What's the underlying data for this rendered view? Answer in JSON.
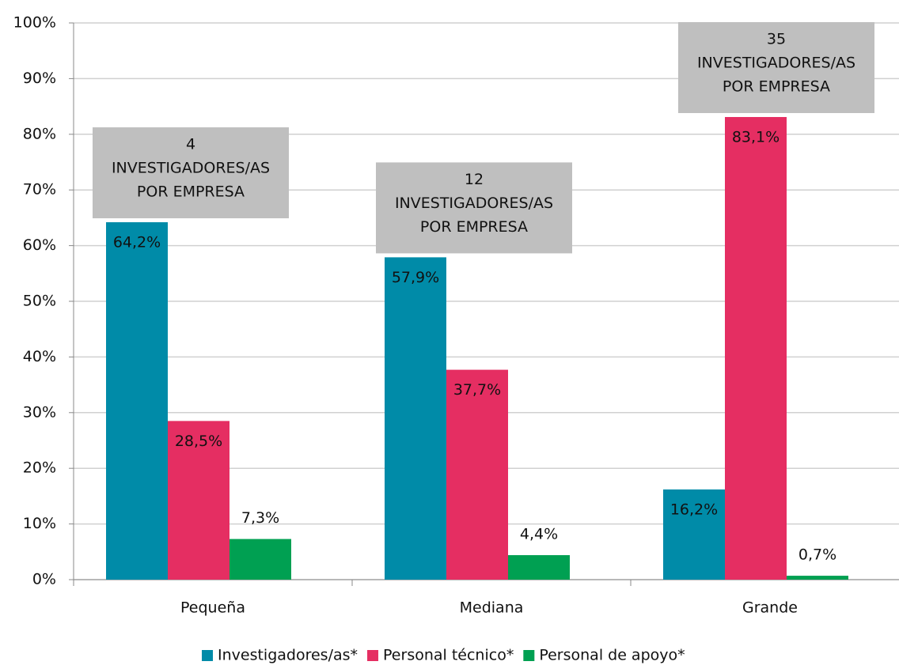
{
  "chart_data": {
    "type": "bar",
    "categories": [
      "Pequeña",
      "Mediana",
      "Grande"
    ],
    "series": [
      {
        "name": "Investigadores/as*",
        "color": "#008ba8",
        "values": [
          64.2,
          57.9,
          16.2
        ],
        "value_labels": [
          "64,2%",
          "57,9%",
          "16,2%"
        ]
      },
      {
        "name": "Personal técnico*",
        "color": "#e52e62",
        "values": [
          28.5,
          37.7,
          83.1
        ],
        "value_labels": [
          "28,5%",
          "37,7%",
          "83,1%"
        ]
      },
      {
        "name": "Personal de apoyo*",
        "color": "#00a052",
        "values": [
          7.3,
          4.4,
          0.7
        ],
        "value_labels": [
          "7,3%",
          "4,4%",
          "0,7%"
        ]
      }
    ],
    "ylim": [
      0,
      100
    ],
    "yticks": [
      {
        "value": 0,
        "label": "0%"
      },
      {
        "value": 10,
        "label": "10%"
      },
      {
        "value": 20,
        "label": "20%"
      },
      {
        "value": 30,
        "label": "30%"
      },
      {
        "value": 40,
        "label": "40%"
      },
      {
        "value": 50,
        "label": "50%"
      },
      {
        "value": 60,
        "label": "60%"
      },
      {
        "value": 70,
        "label": "70%"
      },
      {
        "value": 80,
        "label": "80%"
      },
      {
        "value": 90,
        "label": "90%"
      },
      {
        "value": 100,
        "label": "100%"
      }
    ],
    "grid": true,
    "legend": "bottom",
    "annotations": [
      {
        "lines": [
          "4",
          "INVESTIGADORES/AS",
          "POR EMPRESA"
        ]
      },
      {
        "lines": [
          "12",
          "INVESTIGADORES/AS",
          "POR EMPRESA"
        ]
      },
      {
        "lines": [
          "35",
          "INVESTIGADORES/AS",
          "POR EMPRESA"
        ]
      }
    ]
  }
}
